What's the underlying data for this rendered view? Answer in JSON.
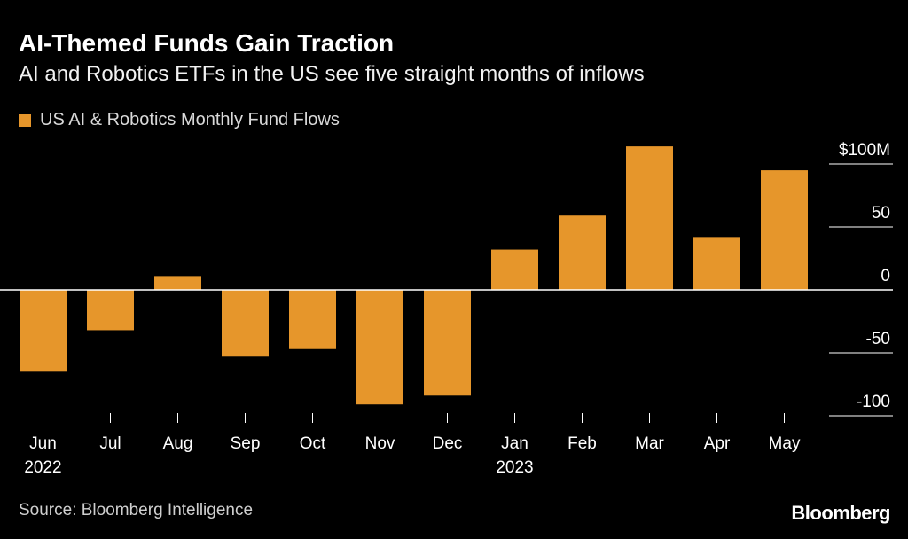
{
  "title": "AI-Themed Funds Gain Traction",
  "subtitle": "AI and Robotics ETFs in the US see five straight months of inflows",
  "legend": {
    "label": "US AI & Robotics Monthly Fund Flows"
  },
  "source": "Source: Bloomberg Intelligence",
  "brand": "Bloomberg",
  "colors": {
    "bar": "#e6962b",
    "background": "#000000",
    "text": "#ffffff",
    "axis": "#ffffff"
  },
  "chart_data": {
    "type": "bar",
    "categories": [
      "Jun",
      "Jul",
      "Aug",
      "Sep",
      "Oct",
      "Nov",
      "Dec",
      "Jan",
      "Feb",
      "Mar",
      "Apr",
      "May"
    ],
    "year_labels": [
      "2022",
      "",
      "",
      "",
      "",
      "",
      "",
      "2023",
      "",
      "",
      "",
      ""
    ],
    "series": [
      {
        "name": "US AI & Robotics Monthly Fund Flows",
        "values": [
          -65,
          -32,
          11,
          -53,
          -47,
          -91,
          -84,
          32,
          59,
          114,
          42,
          95
        ]
      }
    ],
    "ylim": [
      -100,
      100
    ],
    "yticks": [
      {
        "value": 100,
        "label": "$100M"
      },
      {
        "value": 50,
        "label": "50"
      },
      {
        "value": 0,
        "label": "0"
      },
      {
        "value": -50,
        "label": "-50"
      },
      {
        "value": -100,
        "label": "-100"
      }
    ],
    "unit": "$M",
    "grid": false
  }
}
